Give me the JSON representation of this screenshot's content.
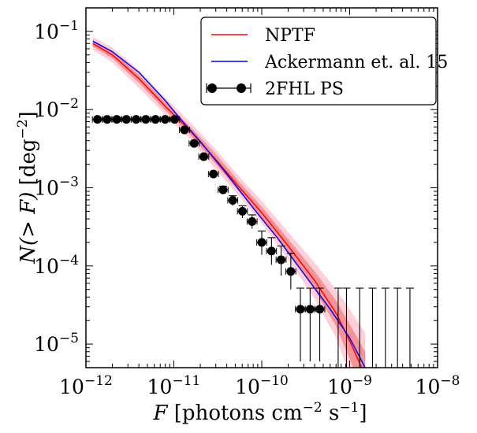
{
  "chart_data": {
    "type": "line",
    "xscale": "log",
    "yscale": "log",
    "xlim": [
      1e-12,
      1e-08
    ],
    "ylim": [
      5e-06,
      0.2
    ],
    "xlabel": {
      "var": "F",
      "text": "[photons cm",
      "sup1": "−2",
      "mid": " s",
      "sup2": "−1",
      "end": "]"
    },
    "ylabel": {
      "var": "N(> F)",
      "text": " [deg",
      "sup": "−2",
      "end": "]"
    },
    "xticks": [
      {
        "value": 1e-12,
        "base": "10",
        "exp": "−12"
      },
      {
        "value": 1e-11,
        "base": "10",
        "exp": "−11"
      },
      {
        "value": 1e-10,
        "base": "10",
        "exp": "−10"
      },
      {
        "value": 1e-09,
        "base": "10",
        "exp": "−9"
      },
      {
        "value": 1e-08,
        "base": "10",
        "exp": "−8"
      }
    ],
    "yticks": [
      {
        "value": 1e-05,
        "base": "10",
        "exp": "−5"
      },
      {
        "value": 0.0001,
        "base": "10",
        "exp": "−4"
      },
      {
        "value": 0.001,
        "base": "10",
        "exp": "−3"
      },
      {
        "value": 0.01,
        "base": "10",
        "exp": "−2"
      },
      {
        "value": 0.1,
        "base": "10",
        "exp": "−1"
      }
    ],
    "series": [
      {
        "name": "NPTF",
        "kind": "line",
        "color": "#ff0000",
        "x": [
          1.2e-12,
          2e-12,
          4e-12,
          8e-12,
          1.5e-11,
          3e-11,
          6e-11,
          1e-10,
          2e-10,
          4e-10,
          7e-10,
          1e-09,
          1.5e-09
        ],
        "y": [
          0.07,
          0.05,
          0.025,
          0.011,
          0.0055,
          0.0023,
          0.00092,
          0.00048,
          0.00018,
          6.5e-05,
          2.5e-05,
          1.1e-05,
          4e-06
        ],
        "band_inner": {
          "color": "#f08080",
          "lower": [
            0.064,
            0.045,
            0.022,
            0.0098,
            0.0049,
            0.002,
            0.0008,
            0.00041,
            0.00015,
            5e-05,
            1.7e-05,
            6.5e-06,
            2e-06
          ],
          "upper": [
            0.077,
            0.056,
            0.028,
            0.0124,
            0.0062,
            0.0027,
            0.00107,
            0.00057,
            0.00022,
            8.5e-05,
            3.6e-05,
            1.8e-05,
            8e-06
          ]
        },
        "band_outer": {
          "color": "#ffc8d2",
          "lower": [
            0.058,
            0.04,
            0.019,
            0.0086,
            0.0043,
            0.0017,
            0.0007,
            0.00035,
            0.00012,
            3.8e-05,
            1.2e-05,
            4e-06,
            1e-06
          ],
          "upper": [
            0.085,
            0.062,
            0.032,
            0.0142,
            0.0071,
            0.0031,
            0.00125,
            0.00068,
            0.00027,
            0.00011,
            5e-05,
            2.8e-05,
            1.4e-05
          ]
        }
      },
      {
        "name": "Ackermann et. al. 15",
        "kind": "line",
        "color": "#0000ff",
        "x": [
          1.2e-12,
          2e-12,
          4e-12,
          8e-12,
          1.2e-11,
          2e-11,
          4e-11,
          8e-11,
          1.5e-10,
          3e-10,
          6e-10,
          1e-09,
          1.5e-09
        ],
        "y": [
          0.075,
          0.055,
          0.03,
          0.013,
          0.0075,
          0.0039,
          0.0015,
          0.00055,
          0.00023,
          8e-05,
          2.8e-05,
          1.2e-05,
          5e-06
        ]
      },
      {
        "name": "2FHL PS",
        "kind": "errorbar",
        "color": "#000000",
        "x": [
          1.35e-12,
          1.74e-12,
          2.24e-12,
          2.88e-12,
          3.72e-12,
          4.79e-12,
          6.17e-12,
          7.94e-12,
          1.02e-11,
          1.32e-11,
          1.7e-11,
          2.19e-11,
          2.82e-11,
          3.63e-11,
          4.68e-11,
          6.03e-11,
          7.76e-11,
          1e-10,
          1.29e-10,
          1.66e-10,
          2.14e-10,
          2.75e-10,
          3.55e-10,
          4.57e-10,
          5.89e-10,
          7.59e-10,
          9.77e-10
        ],
        "y": [
          0.0075,
          0.0075,
          0.0075,
          0.0075,
          0.0075,
          0.0075,
          0.0075,
          0.0075,
          0.0075,
          0.0055,
          0.0037,
          0.0025,
          0.0015,
          0.00094,
          0.00069,
          0.0005,
          0.00037,
          0.0002,
          0.000155,
          0.00012,
          8.5e-05,
          2.8e-05,
          2.8e-05,
          2.8e-05,
          null,
          null,
          null
        ],
        "x_err_factor": 1.14,
        "y_lower": [
          null,
          null,
          null,
          null,
          null,
          null,
          null,
          null,
          null,
          null,
          null,
          null,
          null,
          0.00083,
          0.00059,
          0.00041,
          0.0003,
          0.000139,
          0.000103,
          7.5e-05,
          5e-05,
          6e-06,
          6e-06,
          6e-06,
          null,
          null,
          null
        ],
        "y_upper": [
          null,
          null,
          null,
          null,
          null,
          null,
          null,
          null,
          null,
          null,
          null,
          null,
          null,
          0.00105,
          0.00079,
          0.00059,
          0.00045,
          0.00028,
          0.00023,
          0.00018,
          0.000145,
          5.2e-05,
          5.2e-05,
          5.2e-05,
          null,
          null,
          null
        ],
        "extra_upper_limits": {
          "x": [
            7.4e-10,
            9.2e-10,
            1.3e-09,
            1.82e-09,
            2.55e-09,
            3.5e-09,
            4.85e-09
          ],
          "y_upper": 5.2e-05
        }
      }
    ],
    "legend": {
      "position": "top-right",
      "entries": [
        {
          "label": "NPTF",
          "color": "#ff0000",
          "marker": "line"
        },
        {
          "label": "Ackermann et. al. 15",
          "color": "#0000ff",
          "marker": "line"
        },
        {
          "label": "2FHL PS",
          "color": "#000000",
          "marker": "errorbar"
        }
      ]
    }
  }
}
